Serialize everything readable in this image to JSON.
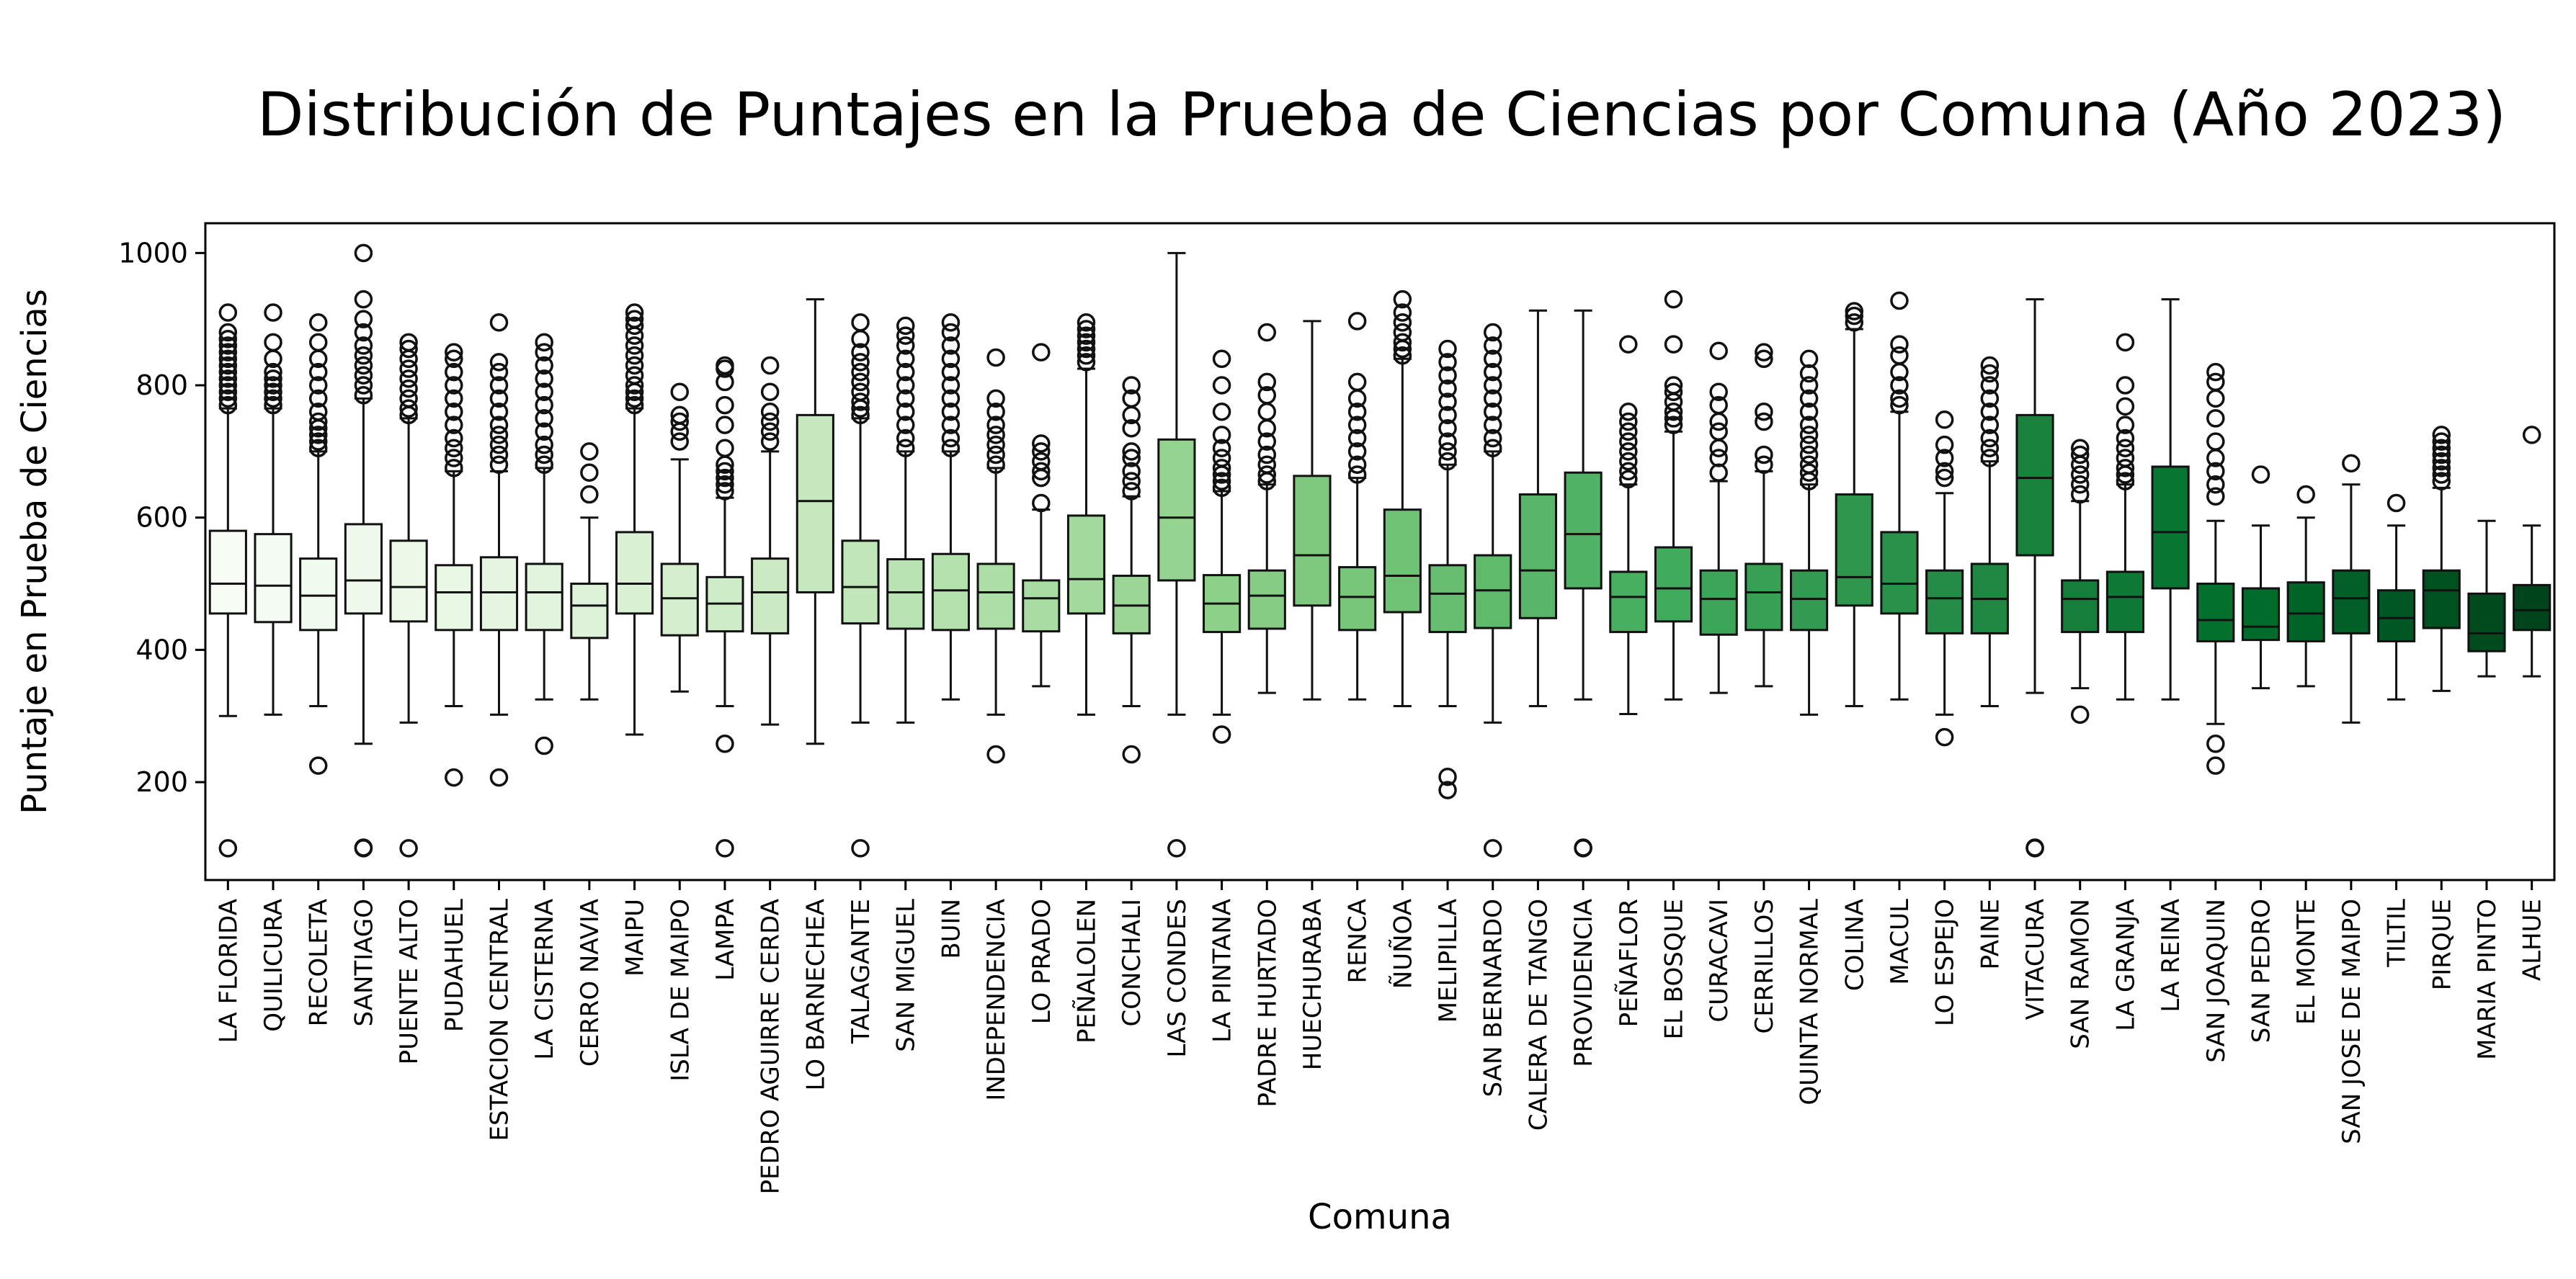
{
  "chart_data": {
    "type": "box",
    "title": "Distribución de Puntajes en la Prueba de Ciencias por Comuna (Año 2023)",
    "xlabel": "Comuna",
    "ylabel": "Puntaje en Prueba de Ciencias",
    "ylim": [
      52,
      1045
    ],
    "yticks": [
      200,
      400,
      600,
      800,
      1000
    ],
    "grid": false,
    "legend": "none",
    "color_scale": [
      "#f7fcf5",
      "#00441b"
    ],
    "categories": [
      "LA FLORIDA",
      "QUILICURA",
      "RECOLETA",
      "SANTIAGO",
      "PUENTE ALTO",
      "PUDAHUEL",
      "ESTACION CENTRAL",
      "LA CISTERNA",
      "CERRO NAVIA",
      "MAIPU",
      "ISLA DE MAIPO",
      "LAMPA",
      "PEDRO AGUIRRE CERDA",
      "LO BARNECHEA",
      "TALAGANTE",
      "SAN MIGUEL",
      "BUIN",
      "INDEPENDENCIA",
      "LO PRADO",
      "PEÑALOLEN",
      "CONCHALI",
      "LAS CONDES",
      "LA PINTANA",
      "PADRE HURTADO",
      "HUECHURABA",
      "RENCA",
      "ÑUÑOA",
      "MELIPILLA",
      "SAN BERNARDO",
      "CALERA DE TANGO",
      "PROVIDENCIA",
      "PEÑAFLOR",
      "EL BOSQUE",
      "CURACAVI",
      "CERRILLOS",
      "QUINTA NORMAL",
      "COLINA",
      "MACUL",
      "LO ESPEJO",
      "PAINE",
      "VITACURA",
      "SAN RAMON",
      "LA GRANJA",
      "LA REINA",
      "SAN JOAQUIN",
      "SAN PEDRO",
      "EL MONTE",
      "SAN JOSE DE MAIPO",
      "TILTIL",
      "PIRQUE",
      "MARIA PINTO",
      "ALHUE"
    ],
    "boxes": [
      {
        "whislo": 300,
        "q1": 455,
        "med": 500,
        "q3": 580,
        "whishi": 765,
        "fliers": [
          100,
          770,
          780,
          790,
          800,
          810,
          820,
          830,
          840,
          850,
          860,
          870,
          880,
          910
        ]
      },
      {
        "whislo": 302,
        "q1": 442,
        "med": 497,
        "q3": 575,
        "whishi": 765,
        "fliers": [
          770,
          780,
          790,
          800,
          810,
          820,
          840,
          865,
          910
        ]
      },
      {
        "whislo": 315,
        "q1": 430,
        "med": 482,
        "q3": 538,
        "whishi": 700,
        "fliers": [
          225,
          705,
          715,
          725,
          735,
          745,
          760,
          780,
          800,
          820,
          840,
          865,
          895
        ]
      },
      {
        "whislo": 258,
        "q1": 455,
        "med": 505,
        "q3": 590,
        "whishi": 780,
        "fliers": [
          100,
          101,
          785,
          800,
          815,
          830,
          845,
          860,
          880,
          900,
          930,
          1000
        ]
      },
      {
        "whislo": 290,
        "q1": 443,
        "med": 495,
        "q3": 565,
        "whishi": 750,
        "fliers": [
          100,
          755,
          765,
          780,
          795,
          810,
          825,
          840,
          855,
          865
        ]
      },
      {
        "whislo": 315,
        "q1": 430,
        "med": 487,
        "q3": 528,
        "whishi": 670,
        "fliers": [
          207,
          675,
          690,
          705,
          720,
          740,
          760,
          780,
          800,
          820,
          840,
          850
        ]
      },
      {
        "whislo": 302,
        "q1": 430,
        "med": 487,
        "q3": 540,
        "whishi": 670,
        "fliers": [
          207,
          680,
          695,
          710,
          725,
          740,
          760,
          780,
          800,
          820,
          835,
          895
        ]
      },
      {
        "whislo": 325,
        "q1": 430,
        "med": 487,
        "q3": 530,
        "whishi": 675,
        "fliers": [
          255,
          680,
          695,
          710,
          730,
          750,
          770,
          790,
          810,
          830,
          850,
          865
        ]
      },
      {
        "whislo": 325,
        "q1": 418,
        "med": 467,
        "q3": 500,
        "whishi": 600,
        "fliers": [
          635,
          668,
          700
        ]
      },
      {
        "whislo": 272,
        "q1": 455,
        "med": 500,
        "q3": 578,
        "whishi": 765,
        "fliers": [
          770,
          780,
          790,
          800,
          815,
          830,
          845,
          860,
          875,
          890,
          900,
          910
        ]
      },
      {
        "whislo": 337,
        "q1": 422,
        "med": 478,
        "q3": 530,
        "whishi": 688,
        "fliers": [
          715,
          730,
          745,
          755,
          790
        ]
      },
      {
        "whislo": 315,
        "q1": 428,
        "med": 470,
        "q3": 510,
        "whishi": 630,
        "fliers": [
          100,
          258,
          640,
          650,
          660,
          670,
          680,
          705,
          740,
          770,
          805,
          825,
          830
        ]
      },
      {
        "whislo": 287,
        "q1": 425,
        "med": 487,
        "q3": 538,
        "whishi": 700,
        "fliers": [
          715,
          730,
          745,
          760,
          790,
          830
        ]
      },
      {
        "whislo": 258,
        "q1": 487,
        "med": 625,
        "q3": 755,
        "whishi": 930,
        "fliers": []
      },
      {
        "whislo": 290,
        "q1": 440,
        "med": 495,
        "q3": 565,
        "whishi": 750,
        "fliers": [
          100,
          755,
          765,
          775,
          790,
          805,
          820,
          835,
          850,
          870,
          895
        ]
      },
      {
        "whislo": 290,
        "q1": 432,
        "med": 487,
        "q3": 537,
        "whishi": 700,
        "fliers": [
          705,
          720,
          740,
          760,
          780,
          800,
          820,
          840,
          860,
          875,
          890
        ]
      },
      {
        "whislo": 325,
        "q1": 430,
        "med": 490,
        "q3": 545,
        "whishi": 700,
        "fliers": [
          705,
          720,
          740,
          760,
          780,
          800,
          820,
          840,
          860,
          880,
          895
        ]
      },
      {
        "whislo": 302,
        "q1": 432,
        "med": 487,
        "q3": 530,
        "whishi": 675,
        "fliers": [
          242,
          680,
          695,
          710,
          725,
          740,
          760,
          780,
          842
        ]
      },
      {
        "whislo": 345,
        "q1": 428,
        "med": 478,
        "q3": 505,
        "whishi": 612,
        "fliers": [
          622,
          660,
          670,
          685,
          700,
          712,
          850
        ]
      },
      {
        "whislo": 302,
        "q1": 455,
        "med": 507,
        "q3": 603,
        "whishi": 825,
        "fliers": [
          835,
          845,
          855,
          865,
          875,
          885,
          895
        ]
      },
      {
        "whislo": 315,
        "q1": 425,
        "med": 467,
        "q3": 512,
        "whishi": 632,
        "fliers": [
          242,
          640,
          655,
          670,
          690,
          700,
          735,
          755,
          780,
          800
        ]
      },
      {
        "whislo": 302,
        "q1": 505,
        "med": 600,
        "q3": 718,
        "whishi": 1000,
        "fliers": [
          100
        ]
      },
      {
        "whislo": 302,
        "q1": 427,
        "med": 470,
        "q3": 513,
        "whishi": 640,
        "fliers": [
          272,
          645,
          655,
          665,
          675,
          690,
          705,
          725,
          760,
          800,
          840
        ]
      },
      {
        "whislo": 335,
        "q1": 432,
        "med": 482,
        "q3": 520,
        "whishi": 650,
        "fliers": [
          655,
          665,
          680,
          695,
          715,
          735,
          760,
          785,
          805,
          880
        ]
      },
      {
        "whislo": 325,
        "q1": 467,
        "med": 543,
        "q3": 663,
        "whishi": 897,
        "fliers": []
      },
      {
        "whislo": 325,
        "q1": 430,
        "med": 480,
        "q3": 525,
        "whishi": 660,
        "fliers": [
          665,
          680,
          700,
          720,
          740,
          760,
          780,
          805,
          897
        ]
      },
      {
        "whislo": 315,
        "q1": 457,
        "med": 512,
        "q3": 612,
        "whishi": 840,
        "fliers": [
          845,
          855,
          865,
          880,
          895,
          910,
          930
        ]
      },
      {
        "whislo": 315,
        "q1": 427,
        "med": 485,
        "q3": 528,
        "whishi": 680,
        "fliers": [
          188,
          208,
          685,
          700,
          715,
          735,
          755,
          775,
          795,
          815,
          835,
          855
        ]
      },
      {
        "whislo": 290,
        "q1": 433,
        "med": 490,
        "q3": 543,
        "whishi": 700,
        "fliers": [
          100,
          705,
          720,
          740,
          760,
          780,
          800,
          820,
          840,
          860,
          880
        ]
      },
      {
        "whislo": 315,
        "q1": 448,
        "med": 520,
        "q3": 635,
        "whishi": 913,
        "fliers": []
      },
      {
        "whislo": 325,
        "q1": 493,
        "med": 575,
        "q3": 668,
        "whishi": 913,
        "fliers": [
          100,
          101
        ]
      },
      {
        "whislo": 303,
        "q1": 427,
        "med": 480,
        "q3": 518,
        "whishi": 650,
        "fliers": [
          658,
          670,
          685,
          700,
          715,
          730,
          745,
          760,
          862
        ]
      },
      {
        "whislo": 325,
        "q1": 443,
        "med": 493,
        "q3": 555,
        "whishi": 730,
        "fliers": [
          740,
          750,
          760,
          775,
          790,
          800,
          862,
          930
        ]
      },
      {
        "whislo": 335,
        "q1": 423,
        "med": 477,
        "q3": 520,
        "whishi": 655,
        "fliers": [
          668,
          690,
          705,
          730,
          745,
          770,
          790,
          852
        ]
      },
      {
        "whislo": 345,
        "q1": 430,
        "med": 487,
        "q3": 530,
        "whishi": 670,
        "fliers": [
          680,
          695,
          745,
          760,
          840,
          850
        ]
      },
      {
        "whislo": 302,
        "q1": 430,
        "med": 477,
        "q3": 520,
        "whishi": 650,
        "fliers": [
          655,
          668,
          680,
          695,
          710,
          725,
          740,
          760,
          780,
          800,
          818,
          840
        ]
      },
      {
        "whislo": 315,
        "q1": 467,
        "med": 510,
        "q3": 635,
        "whishi": 885,
        "fliers": [
          895,
          905,
          912
        ]
      },
      {
        "whislo": 325,
        "q1": 455,
        "med": 500,
        "q3": 578,
        "whishi": 760,
        "fliers": [
          770,
          780,
          800,
          820,
          845,
          862,
          928
        ]
      },
      {
        "whislo": 302,
        "q1": 425,
        "med": 478,
        "q3": 520,
        "whishi": 637,
        "fliers": [
          268,
          660,
          670,
          690,
          710,
          748
        ]
      },
      {
        "whislo": 315,
        "q1": 425,
        "med": 477,
        "q3": 530,
        "whishi": 685,
        "fliers": [
          690,
          705,
          720,
          740,
          760,
          780,
          800,
          818,
          830
        ]
      },
      {
        "whislo": 335,
        "q1": 543,
        "med": 660,
        "q3": 755,
        "whishi": 930,
        "fliers": [
          100,
          101
        ]
      },
      {
        "whislo": 342,
        "q1": 427,
        "med": 477,
        "q3": 505,
        "whishi": 625,
        "fliers": [
          302,
          635,
          650,
          665,
          680,
          695,
          705
        ]
      },
      {
        "whislo": 325,
        "q1": 427,
        "med": 480,
        "q3": 518,
        "whishi": 650,
        "fliers": [
          655,
          665,
          675,
          690,
          705,
          720,
          740,
          768,
          800,
          865
        ]
      },
      {
        "whislo": 325,
        "q1": 493,
        "med": 578,
        "q3": 677,
        "whishi": 930,
        "fliers": []
      },
      {
        "whislo": 288,
        "q1": 413,
        "med": 445,
        "q3": 500,
        "whishi": 595,
        "fliers": [
          225,
          258,
          632,
          650,
          670,
          690,
          715,
          750,
          780,
          805,
          820
        ]
      },
      {
        "whislo": 342,
        "q1": 415,
        "med": 435,
        "q3": 493,
        "whishi": 588,
        "fliers": [
          665
        ]
      },
      {
        "whislo": 345,
        "q1": 413,
        "med": 455,
        "q3": 502,
        "whishi": 600,
        "fliers": [
          635
        ]
      },
      {
        "whislo": 290,
        "q1": 425,
        "med": 478,
        "q3": 520,
        "whishi": 650,
        "fliers": [
          682
        ]
      },
      {
        "whislo": 325,
        "q1": 413,
        "med": 448,
        "q3": 490,
        "whishi": 588,
        "fliers": [
          622
        ]
      },
      {
        "whislo": 338,
        "q1": 433,
        "med": 490,
        "q3": 520,
        "whishi": 645,
        "fliers": [
          655,
          665,
          675,
          685,
          695,
          705,
          715,
          725
        ]
      },
      {
        "whislo": 360,
        "q1": 398,
        "med": 425,
        "q3": 485,
        "whishi": 595,
        "fliers": []
      },
      {
        "whislo": 360,
        "q1": 430,
        "med": 460,
        "q3": 498,
        "whishi": 588,
        "fliers": [
          725
        ]
      }
    ]
  }
}
